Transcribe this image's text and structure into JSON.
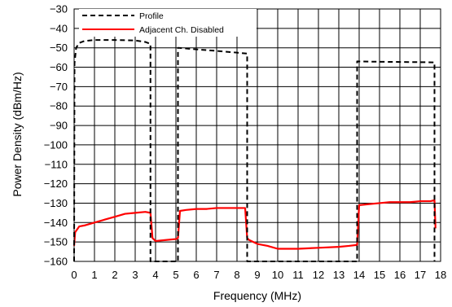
{
  "chart_data": {
    "type": "line",
    "title": "",
    "xlabel": "Frequency (MHz)",
    "ylabel": "Power Density (dBm/Hz)",
    "xlim": [
      0,
      18
    ],
    "ylim": [
      -160,
      -30
    ],
    "x_ticks": [
      0,
      1,
      2,
      3,
      4,
      5,
      6,
      7,
      8,
      9,
      10,
      11,
      12,
      13,
      14,
      15,
      16,
      17,
      18
    ],
    "y_ticks": [
      -30,
      -40,
      -50,
      -60,
      -70,
      -80,
      -90,
      -100,
      -110,
      -120,
      -130,
      -140,
      -150,
      -160
    ],
    "grid": true,
    "legend_position": "top-left",
    "series": [
      {
        "name": "Profile",
        "style": "dashed",
        "color": "#000000",
        "x": [
          0,
          0.02,
          0.1,
          0.25,
          0.5,
          1.0,
          2.0,
          3.0,
          3.5,
          3.75,
          3.75,
          4.0,
          4.0,
          4.0,
          5.1,
          5.1,
          5.1,
          6.0,
          7.0,
          8.0,
          8.5,
          8.5,
          8.5,
          9.0,
          10.0,
          11.0,
          12.0,
          13.0,
          13.9,
          13.9,
          13.9,
          15.0,
          16.0,
          17.0,
          17.7,
          17.7,
          17.7
        ],
        "y": [
          -160,
          -58,
          -50,
          -47.5,
          -46.5,
          -46,
          -46,
          -46.2,
          -47,
          -48,
          -160,
          -160,
          -160,
          -160,
          -160,
          -50,
          -50,
          -50.8,
          -51.6,
          -52.5,
          -53,
          -53,
          -160,
          -160,
          -160,
          -160,
          -160,
          -160,
          -160,
          -57,
          -57,
          -57.2,
          -57.3,
          -57.4,
          -57.5,
          -57.5,
          -160
        ]
      },
      {
        "name": "Adjacent Ch. Disabled",
        "style": "solid",
        "color": "#ff0000",
        "x": [
          0,
          0.05,
          0.25,
          0.5,
          1.0,
          1.5,
          2.0,
          2.5,
          3.0,
          3.5,
          3.75,
          3.85,
          4.0,
          4.5,
          5.0,
          5.1,
          5.2,
          5.5,
          6.0,
          6.5,
          7.0,
          7.5,
          8.0,
          8.4,
          8.5,
          8.6,
          9.0,
          9.5,
          10.0,
          11.0,
          12.0,
          13.0,
          13.5,
          13.9,
          14.0,
          14.5,
          15.0,
          15.5,
          16.0,
          16.5,
          17.0,
          17.5,
          17.7,
          17.75
        ],
        "y": [
          -152,
          -145,
          -142,
          -141.5,
          -140,
          -138.5,
          -137,
          -135.5,
          -135,
          -134.5,
          -135,
          -148,
          -149.5,
          -149,
          -148.5,
          -148,
          -134,
          -133.5,
          -133,
          -133,
          -132.5,
          -132.5,
          -132.5,
          -132.5,
          -148,
          -149,
          -151,
          -152,
          -153.5,
          -153.5,
          -153,
          -152.5,
          -152,
          -151.5,
          -131,
          -130.5,
          -130,
          -129.5,
          -129.5,
          -129.5,
          -129,
          -129,
          -128.5,
          -143
        ]
      }
    ]
  }
}
